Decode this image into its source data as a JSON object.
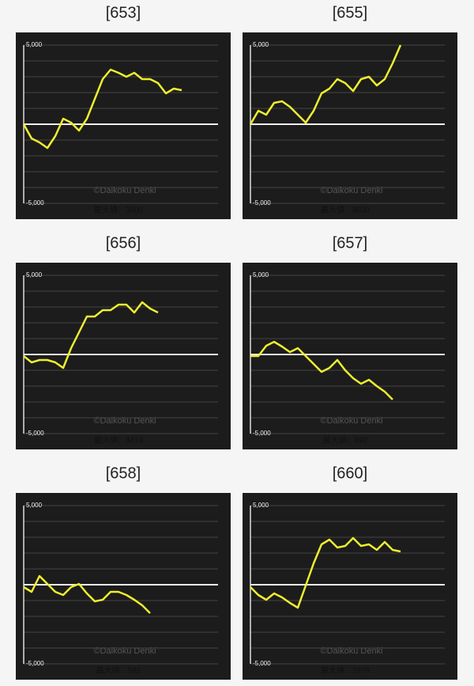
{
  "chart_data": [
    {
      "type": "line",
      "title": "[653]",
      "watermark": "©Daikoku Denki",
      "note": "最大値：3500",
      "color": "#eeee30",
      "values": [
        0,
        -900,
        -1150,
        -1500,
        -750,
        350,
        100,
        -400,
        350,
        1600,
        2850,
        3450,
        3250,
        3000,
        3250,
        2850,
        2850,
        2600,
        1950,
        2250,
        2150
      ],
      "ylim": [
        -5000,
        5000
      ],
      "yticks": [
        {
          "value": 5000,
          "label": "5,000"
        },
        {
          "value": -5000,
          "label": "-5,000"
        }
      ],
      "grid": true
    },
    {
      "type": "line",
      "title": "[655]",
      "watermark": "©Daikoku Denki",
      "note": "最大値：9030",
      "color": "#eeee30",
      "values": [
        0,
        850,
        600,
        1350,
        1450,
        1100,
        600,
        100,
        850,
        1950,
        2250,
        2850,
        2600,
        2100,
        2850,
        3000,
        2450,
        2850,
        3850,
        5000
      ],
      "ylim": [
        -5000,
        5000
      ],
      "yticks": [
        {
          "value": 5000,
          "label": "5,000"
        },
        {
          "value": -5000,
          "label": "-5,000"
        }
      ],
      "grid": true
    },
    {
      "type": "line",
      "title": "[656]",
      "watermark": "©Daikoku Denki",
      "note": "最大値：3419",
      "color": "#eeee30",
      "values": [
        -100,
        -500,
        -350,
        -350,
        -500,
        -850,
        400,
        1400,
        2400,
        2400,
        2800,
        2800,
        3150,
        3150,
        2650,
        3300,
        2900,
        2650
      ],
      "ylim": [
        -5000,
        5000
      ],
      "yticks": [
        {
          "value": 5000,
          "label": "5,000"
        },
        {
          "value": -5000,
          "label": "-5,000"
        }
      ],
      "grid": true
    },
    {
      "type": "line",
      "title": "[657]",
      "watermark": "©Daikoku Denki",
      "note": "最大値：892",
      "color": "#eeee30",
      "values": [
        -100,
        -100,
        550,
        800,
        500,
        150,
        400,
        -100,
        -600,
        -1100,
        -850,
        -350,
        -1000,
        -1500,
        -1850,
        -1600,
        -2000,
        -2350,
        -2850
      ],
      "ylim": [
        -5000,
        5000
      ],
      "yticks": [
        {
          "value": 5000,
          "label": "5,000"
        },
        {
          "value": -5000,
          "label": "-5,000"
        }
      ],
      "grid": true
    },
    {
      "type": "line",
      "title": "[658]",
      "watermark": "©Daikoku Denki",
      "note": "最大値：581",
      "color": "#eeee30",
      "values": [
        -150,
        -450,
        550,
        50,
        -450,
        -650,
        -150,
        50,
        -550,
        -1050,
        -950,
        -450,
        -450,
        -650,
        -950,
        -1300,
        -1800
      ],
      "ylim": [
        -5000,
        5000
      ],
      "yticks": [
        {
          "value": 5000,
          "label": "5,000"
        },
        {
          "value": -5000,
          "label": "-5,000"
        }
      ],
      "grid": true
    },
    {
      "type": "line",
      "title": "[660]",
      "watermark": "©Daikoku Denki",
      "note": "最大値：2978",
      "color": "#eeee30",
      "values": [
        -150,
        -650,
        -950,
        -550,
        -800,
        -1150,
        -1450,
        -50,
        1350,
        2550,
        2850,
        2350,
        2450,
        2950,
        2450,
        2550,
        2200,
        2700,
        2200,
        2100
      ],
      "ylim": [
        -5000,
        5000
      ],
      "yticks": [
        {
          "value": 5000,
          "label": "5,000"
        },
        {
          "value": -5000,
          "label": "-5,000"
        }
      ],
      "grid": true
    }
  ]
}
